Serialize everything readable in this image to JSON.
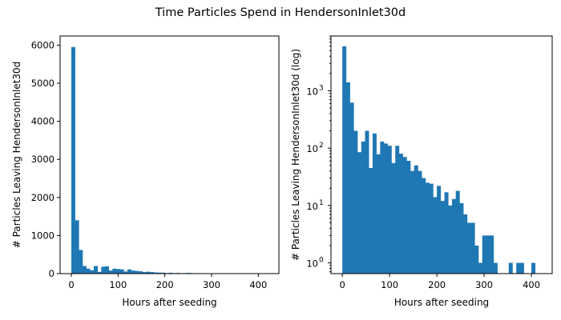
{
  "figure": {
    "title": "Time Particles Spend in HendersonInlet30d"
  },
  "chart_data": [
    {
      "type": "bar",
      "title": "",
      "xlabel": "Hours after seeding",
      "ylabel": "# Particles Leaving HendersonInlet30d",
      "yscale": "linear",
      "xlim": [
        -24,
        444
      ],
      "ylim": [
        0,
        6240
      ],
      "xticks": [
        "0",
        "100",
        "200",
        "300",
        "400"
      ],
      "yticks": [
        "0",
        "1000",
        "2000",
        "3000",
        "4000",
        "5000",
        "6000"
      ],
      "color": "#1f77b4",
      "bin_width": 8,
      "bin_start": 0,
      "values": [
        5950,
        1400,
        620,
        200,
        130,
        85,
        200,
        45,
        180,
        190,
        80,
        130,
        120,
        110,
        55,
        110,
        80,
        70,
        60,
        40,
        50,
        40,
        30,
        25,
        24,
        14,
        22,
        12,
        17,
        10,
        13,
        18,
        11,
        7,
        5,
        5,
        2,
        1,
        3,
        3,
        3,
        1,
        0,
        0,
        0,
        1,
        0,
        1,
        1,
        0,
        0,
        1,
        0
      ]
    },
    {
      "type": "bar",
      "title": "",
      "xlabel": "Hours after seeding",
      "ylabel": "# Particles Leaving HendersonInlet30d (log)",
      "yscale": "log",
      "xlim": [
        -24,
        444
      ],
      "ylim": [
        0.65,
        9000
      ],
      "xticks": [
        "0",
        "100",
        "200",
        "300",
        "400"
      ],
      "yticks": [
        "10",
        "10",
        "10",
        "10"
      ],
      "ytick_exponents": [
        "0",
        "1",
        "2",
        "3"
      ],
      "color": "#1f77b4",
      "bin_width": 8,
      "bin_start": 0,
      "values": [
        5950,
        1400,
        620,
        200,
        85,
        130,
        200,
        45,
        180,
        78,
        130,
        120,
        110,
        55,
        110,
        80,
        70,
        60,
        40,
        50,
        40,
        30,
        25,
        24,
        14,
        22,
        12,
        17,
        10,
        13,
        18,
        11,
        7,
        5,
        5,
        2,
        1,
        3,
        3,
        3,
        1,
        0,
        0,
        0,
        1,
        0,
        1,
        1,
        0,
        0,
        1,
        0,
        0
      ]
    }
  ]
}
